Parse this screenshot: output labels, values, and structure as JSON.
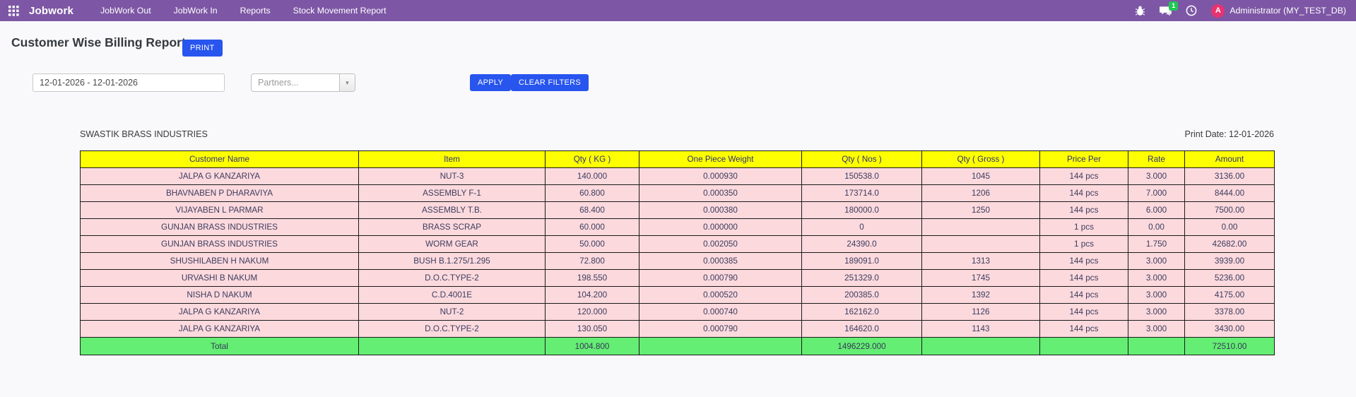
{
  "navbar": {
    "brand": "Jobwork",
    "menu_items": [
      "JobWork Out",
      "JobWork In",
      "Reports",
      "Stock Movement Report"
    ],
    "message_badge": "1",
    "avatar_letter": "A",
    "user": "Administrator (MY_TEST_DB)"
  },
  "page": {
    "title": "Customer Wise Billing Report",
    "print_button": "PRINT"
  },
  "filters": {
    "date_range": "12-01-2026 - 12-01-2026",
    "partners_placeholder": "Partners...",
    "apply_button": "APPLY",
    "clear_button": "CLEAR FILTERS"
  },
  "report": {
    "company": "SWASTIK BRASS INDUSTRIES",
    "print_date": "Print Date: 12-01-2026"
  },
  "table": {
    "headers": [
      "Customer Name",
      "Item",
      "Qty ( KG )",
      "One Piece Weight",
      "Qty ( Nos )",
      "Qty ( Gross )",
      "Price Per",
      "Rate",
      "Amount"
    ],
    "rows": [
      [
        "JALPA G KANZARIYA",
        "NUT-3",
        "140.000",
        "0.000930",
        "150538.0",
        "1045",
        "144 pcs",
        "3.000",
        "3136.00"
      ],
      [
        "BHAVNABEN P DHARAVIYA",
        "ASSEMBLY F-1",
        "60.800",
        "0.000350",
        "173714.0",
        "1206",
        "144 pcs",
        "7.000",
        "8444.00"
      ],
      [
        "VIJAYABEN L PARMAR",
        "ASSEMBLY T.B.",
        "68.400",
        "0.000380",
        "180000.0",
        "1250",
        "144 pcs",
        "6.000",
        "7500.00"
      ],
      [
        "GUNJAN BRASS INDUSTRIES",
        "BRASS SCRAP",
        "60.000",
        "0.000000",
        "0",
        "",
        "1 pcs",
        "0.00",
        "0.00"
      ],
      [
        "GUNJAN BRASS INDUSTRIES",
        "WORM GEAR",
        "50.000",
        "0.002050",
        "24390.0",
        "",
        "1 pcs",
        "1.750",
        "42682.00"
      ],
      [
        "SHUSHILABEN H NAKUM",
        "BUSH B.1.275/1.295",
        "72.800",
        "0.000385",
        "189091.0",
        "1313",
        "144 pcs",
        "3.000",
        "3939.00"
      ],
      [
        "URVASHI B NAKUM",
        "D.O.C.TYPE-2",
        "198.550",
        "0.000790",
        "251329.0",
        "1745",
        "144 pcs",
        "3.000",
        "5236.00"
      ],
      [
        "NISHA D NAKUM",
        "C.D.4001E",
        "104.200",
        "0.000520",
        "200385.0",
        "1392",
        "144 pcs",
        "3.000",
        "4175.00"
      ],
      [
        "JALPA G KANZARIYA",
        "NUT-2",
        "120.000",
        "0.000740",
        "162162.0",
        "1126",
        "144 pcs",
        "3.000",
        "3378.00"
      ],
      [
        "JALPA G KANZARIYA",
        "D.O.C.TYPE-2",
        "130.050",
        "0.000790",
        "164620.0",
        "1143",
        "144 pcs",
        "3.000",
        "3430.00"
      ]
    ],
    "total_row": [
      "Total",
      "",
      "1004.800",
      "",
      "1496229.000",
      "",
      "",
      "",
      "72510.00"
    ]
  },
  "colors": {
    "navbar_bg": "#7d57a5",
    "accent_blue": "#2855ee",
    "header_yellow": "#fdfe00",
    "row_pink": "#fcd9dd",
    "total_green": "#64ee73",
    "avatar_pink": "#e73370",
    "badge_green": "#20c653"
  }
}
